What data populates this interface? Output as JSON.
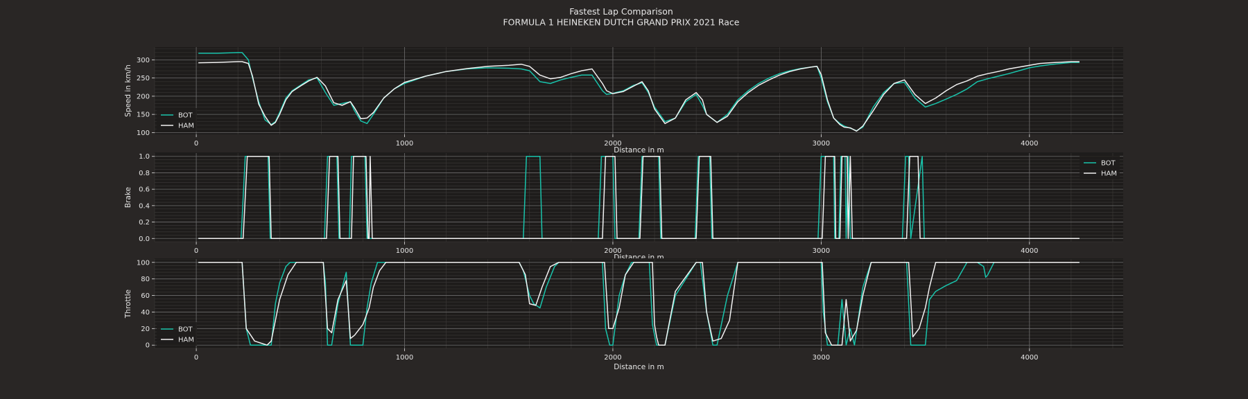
{
  "colors": {
    "figure_bg": "#292625",
    "axes_bg": "#1e1c1b",
    "text": "#e6e6e6",
    "major_grid": "#6b6b6b",
    "minor_grid": "#3d3a39",
    "bot": "#19c3ab",
    "ham": "#f2f2f2"
  },
  "figure": {
    "title_line1": "Fastest Lap Comparison",
    "title_line2": "FORMULA 1 HEINEKEN DUTCH GRAND PRIX 2021 Race"
  },
  "chart_data": [
    {
      "type": "line",
      "id": "speed",
      "xlabel": "Distance in m",
      "ylabel": "Speed in km/h",
      "xlim": [
        -200,
        4450
      ],
      "ylim": [
        95,
        335
      ],
      "xticks": [
        0,
        1000,
        2000,
        3000,
        4000
      ],
      "yticks": [
        100,
        150,
        200,
        250,
        300
      ],
      "grid": true,
      "legend": "bottom-left",
      "series": [
        {
          "name": "BOT",
          "color": "#19c3ab",
          "x": [
            10,
            100,
            200,
            220,
            250,
            270,
            300,
            330,
            360,
            380,
            400,
            430,
            460,
            500,
            540,
            580,
            620,
            660,
            700,
            740,
            760,
            790,
            820,
            850,
            900,
            950,
            1000,
            1100,
            1200,
            1300,
            1400,
            1500,
            1560,
            1600,
            1650,
            1700,
            1750,
            1800,
            1850,
            1900,
            1950,
            1970,
            2000,
            2050,
            2100,
            2140,
            2170,
            2200,
            2250,
            2300,
            2350,
            2400,
            2430,
            2450,
            2500,
            2550,
            2600,
            2650,
            2700,
            2750,
            2800,
            2850,
            2900,
            2950,
            2980,
            3000,
            3030,
            3060,
            3090,
            3110,
            3140,
            3170,
            3200,
            3250,
            3300,
            3350,
            3400,
            3450,
            3500,
            3550,
            3600,
            3650,
            3700,
            3750,
            3800,
            3850,
            3900,
            3950,
            4000,
            4050,
            4100,
            4200,
            4240
          ],
          "y": [
            318,
            318,
            320,
            320,
            300,
            250,
            185,
            135,
            122,
            130,
            155,
            195,
            215,
            230,
            245,
            250,
            210,
            175,
            180,
            185,
            160,
            132,
            125,
            150,
            195,
            220,
            235,
            255,
            268,
            275,
            278,
            277,
            275,
            270,
            240,
            235,
            245,
            252,
            258,
            258,
            215,
            205,
            208,
            215,
            230,
            237,
            210,
            170,
            130,
            140,
            185,
            205,
            175,
            150,
            128,
            150,
            190,
            215,
            235,
            250,
            262,
            270,
            276,
            280,
            282,
            250,
            185,
            140,
            125,
            118,
            112,
            105,
            115,
            170,
            210,
            235,
            238,
            195,
            170,
            180,
            192,
            205,
            220,
            240,
            248,
            255,
            262,
            270,
            278,
            283,
            287,
            293,
            293
          ]
        },
        {
          "name": "HAM",
          "color": "#f2f2f2",
          "x": [
            10,
            100,
            200,
            220,
            250,
            270,
            300,
            330,
            360,
            380,
            400,
            430,
            460,
            500,
            540,
            580,
            620,
            660,
            700,
            740,
            760,
            790,
            820,
            850,
            900,
            950,
            1000,
            1100,
            1200,
            1300,
            1400,
            1500,
            1560,
            1600,
            1650,
            1700,
            1750,
            1800,
            1850,
            1900,
            1950,
            1970,
            2000,
            2050,
            2100,
            2140,
            2170,
            2200,
            2250,
            2300,
            2350,
            2400,
            2430,
            2450,
            2500,
            2550,
            2600,
            2650,
            2700,
            2750,
            2800,
            2850,
            2900,
            2950,
            2980,
            3000,
            3030,
            3060,
            3090,
            3110,
            3140,
            3170,
            3200,
            3250,
            3300,
            3350,
            3400,
            3450,
            3500,
            3550,
            3600,
            3650,
            3700,
            3750,
            3800,
            3850,
            3900,
            3950,
            4000,
            4050,
            4100,
            4200,
            4240
          ],
          "y": [
            292,
            293,
            295,
            295,
            290,
            255,
            178,
            145,
            120,
            128,
            150,
            190,
            213,
            228,
            242,
            252,
            228,
            182,
            175,
            185,
            168,
            138,
            140,
            155,
            195,
            220,
            238,
            255,
            268,
            276,
            282,
            285,
            288,
            282,
            258,
            248,
            252,
            262,
            270,
            275,
            235,
            215,
            207,
            213,
            228,
            240,
            215,
            165,
            125,
            140,
            190,
            210,
            190,
            150,
            128,
            145,
            185,
            210,
            230,
            245,
            258,
            268,
            275,
            280,
            282,
            260,
            190,
            140,
            122,
            115,
            113,
            104,
            118,
            160,
            205,
            235,
            245,
            205,
            180,
            195,
            215,
            232,
            242,
            255,
            262,
            268,
            275,
            280,
            285,
            290,
            292,
            295,
            295
          ]
        }
      ]
    },
    {
      "type": "line",
      "id": "brake",
      "xlabel": "Distance in m",
      "ylabel": "Brake",
      "xlim": [
        -200,
        4450
      ],
      "ylim": [
        -0.04,
        1.04
      ],
      "xticks": [
        0,
        1000,
        2000,
        3000,
        4000
      ],
      "yticks": [
        0.0,
        0.2,
        0.4,
        0.6,
        0.8,
        1.0
      ],
      "yticklabels": [
        "0.0",
        "0.2",
        "0.4",
        "0.6",
        "0.8",
        "1.0"
      ],
      "grid": true,
      "legend": "top-right",
      "series": [
        {
          "name": "BOT",
          "color": "#19c3ab",
          "x": [
            10,
            215,
            235,
            345,
            355,
            615,
            630,
            675,
            685,
            735,
            745,
            810,
            820,
            1570,
            1585,
            1650,
            1660,
            1930,
            1945,
            2000,
            2010,
            2125,
            2140,
            2220,
            2230,
            2395,
            2410,
            2465,
            2475,
            2985,
            3000,
            3060,
            3065,
            3085,
            3095,
            3115,
            3120,
            3130,
            3140,
            3390,
            3405,
            3420,
            3430,
            3485,
            3495,
            4240
          ],
          "y": [
            0,
            0,
            1,
            1,
            0,
            0,
            1,
            1,
            0,
            0,
            1,
            1,
            0,
            0,
            1,
            1,
            0,
            0,
            1,
            1,
            0,
            0,
            1,
            1,
            0,
            0,
            1,
            1,
            0,
            0,
            1,
            1,
            0,
            0,
            1,
            1,
            0,
            1,
            0,
            0,
            1,
            1,
            0,
            1,
            0,
            0
          ]
        },
        {
          "name": "HAM",
          "color": "#f2f2f2",
          "x": [
            10,
            225,
            245,
            350,
            360,
            625,
            640,
            680,
            690,
            745,
            755,
            815,
            825,
            830,
            835,
            845,
            850,
            1950,
            1965,
            2010,
            2020,
            2130,
            2145,
            2225,
            2235,
            2400,
            2415,
            2470,
            2480,
            3005,
            3020,
            3065,
            3070,
            3090,
            3100,
            3125,
            3130,
            3140,
            3150,
            3410,
            3425,
            3465,
            3475,
            4240
          ],
          "y": [
            0,
            0,
            1,
            1,
            0,
            0,
            1,
            1,
            0,
            0,
            1,
            1,
            0,
            0,
            1,
            0,
            0,
            0,
            1,
            1,
            0,
            0,
            1,
            1,
            0,
            0,
            1,
            1,
            0,
            0,
            1,
            1,
            0,
            0,
            1,
            1,
            0,
            1,
            0,
            0,
            1,
            1,
            0,
            0
          ]
        }
      ]
    },
    {
      "type": "line",
      "id": "throttle",
      "xlabel": "Distance in m",
      "ylabel": "Throttle",
      "xlim": [
        -200,
        4450
      ],
      "ylim": [
        -4,
        104
      ],
      "xticks": [
        0,
        1000,
        2000,
        3000,
        4000
      ],
      "yticks": [
        0,
        20,
        40,
        60,
        80,
        100
      ],
      "grid": true,
      "legend": "bottom-left",
      "series": [
        {
          "name": "BOT",
          "color": "#19c3ab",
          "x": [
            10,
            220,
            240,
            260,
            360,
            380,
            400,
            430,
            450,
            610,
            620,
            630,
            650,
            680,
            720,
            740,
            760,
            800,
            820,
            840,
            870,
            900,
            920,
            1550,
            1570,
            1600,
            1620,
            1650,
            1680,
            1720,
            1740,
            1950,
            1965,
            1985,
            2000,
            2030,
            2060,
            2090,
            2120,
            2175,
            2190,
            2210,
            2220,
            2250,
            2300,
            2400,
            2420,
            2450,
            2480,
            2500,
            2550,
            2600,
            3000,
            3010,
            3030,
            3060,
            3080,
            3100,
            3120,
            3140,
            3160,
            3200,
            3240,
            3400,
            3410,
            3430,
            3500,
            3520,
            3550,
            3600,
            3650,
            3700,
            3750,
            3780,
            3790,
            3800,
            3830,
            4240
          ],
          "y": [
            100,
            100,
            20,
            0,
            0,
            50,
            75,
            95,
            100,
            100,
            75,
            0,
            0,
            50,
            88,
            0,
            0,
            0,
            45,
            75,
            100,
            100,
            100,
            100,
            90,
            60,
            50,
            45,
            70,
            95,
            100,
            100,
            20,
            0,
            0,
            60,
            85,
            100,
            100,
            100,
            25,
            0,
            0,
            0,
            60,
            100,
            100,
            40,
            0,
            0,
            60,
            100,
            100,
            40,
            0,
            0,
            0,
            55,
            0,
            20,
            0,
            70,
            100,
            100,
            100,
            0,
            0,
            55,
            65,
            72,
            78,
            100,
            100,
            95,
            82,
            85,
            100,
            100
          ]
        },
        {
          "name": "HAM",
          "color": "#f2f2f2",
          "x": [
            10,
            220,
            240,
            280,
            340,
            360,
            400,
            440,
            480,
            610,
            630,
            650,
            680,
            720,
            740,
            760,
            800,
            830,
            850,
            880,
            910,
            940,
            1550,
            1580,
            1600,
            1630,
            1660,
            1700,
            1740,
            1960,
            1980,
            2000,
            2030,
            2060,
            2100,
            2190,
            2200,
            2210,
            2220,
            2250,
            2300,
            2400,
            2430,
            2450,
            2480,
            2520,
            2560,
            2600,
            3005,
            3020,
            3050,
            3080,
            3100,
            3120,
            3140,
            3170,
            3200,
            3240,
            3400,
            3420,
            3440,
            3470,
            3500,
            3520,
            3550,
            3600,
            3650,
            3700,
            3750,
            3800,
            4240
          ],
          "y": [
            100,
            100,
            20,
            5,
            0,
            5,
            55,
            85,
            100,
            100,
            20,
            15,
            55,
            78,
            8,
            12,
            25,
            45,
            70,
            90,
            100,
            100,
            100,
            85,
            50,
            48,
            70,
            95,
            100,
            100,
            20,
            20,
            45,
            85,
            100,
            100,
            25,
            10,
            0,
            0,
            65,
            100,
            100,
            40,
            5,
            8,
            30,
            100,
            100,
            15,
            0,
            0,
            0,
            55,
            5,
            18,
            60,
            100,
            100,
            100,
            10,
            20,
            45,
            70,
            100,
            100,
            100,
            100,
            100,
            100,
            100
          ]
        }
      ]
    }
  ]
}
